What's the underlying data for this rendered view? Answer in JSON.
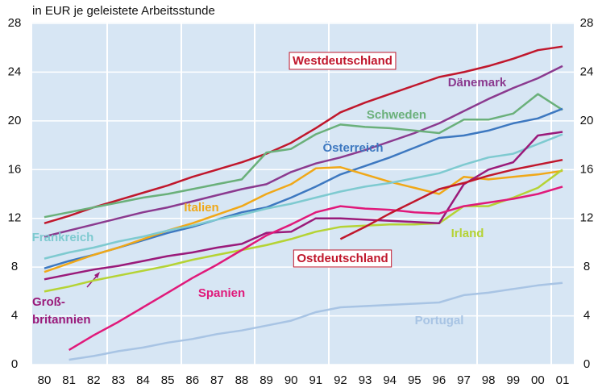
{
  "chart_data": {
    "type": "line",
    "subtitle": "in EUR je geleistete Arbeitsstunde",
    "categories": [
      "80",
      "81",
      "82",
      "83",
      "84",
      "85",
      "86",
      "87",
      "88",
      "89",
      "90",
      "91",
      "92",
      "93",
      "94",
      "95",
      "96",
      "97",
      "98",
      "99",
      "00",
      "01"
    ],
    "ylim": [
      0,
      28
    ],
    "yticks": [
      0,
      4,
      8,
      12,
      16,
      20,
      24,
      28
    ],
    "grid": true,
    "series": [
      {
        "name": "Westdeutschland",
        "color": "#c0172c",
        "boxed": true,
        "values": [
          11.6,
          12.2,
          12.9,
          13.5,
          14.1,
          14.7,
          15.4,
          16.0,
          16.6,
          17.3,
          18.2,
          19.4,
          20.7,
          21.5,
          22.2,
          22.9,
          23.6,
          24.0,
          24.5,
          25.1,
          25.8,
          26.1
        ]
      },
      {
        "name": "Dänemark",
        "color": "#8b3a8f",
        "values": [
          10.5,
          11.0,
          11.5,
          12.0,
          12.5,
          12.9,
          13.4,
          13.9,
          14.4,
          14.8,
          15.8,
          16.5,
          17.0,
          17.6,
          18.3,
          19.0,
          19.8,
          20.8,
          21.8,
          22.7,
          23.5,
          24.5
        ]
      },
      {
        "name": "Schweden",
        "color": "#6ab07a",
        "values": [
          12.1,
          12.5,
          12.9,
          13.3,
          13.7,
          14.0,
          14.4,
          14.8,
          15.2,
          17.4,
          17.7,
          18.9,
          19.7,
          19.5,
          19.4,
          19.2,
          19.0,
          20.1,
          20.1,
          20.6,
          22.2,
          20.9
        ]
      },
      {
        "name": "Österreich",
        "color": "#3d78c0",
        "values": [
          7.9,
          8.5,
          9.0,
          9.6,
          10.2,
          10.8,
          11.3,
          11.9,
          12.5,
          12.9,
          13.7,
          14.6,
          15.6,
          16.3,
          17.0,
          17.8,
          18.6,
          18.8,
          19.2,
          19.8,
          20.2,
          21.0
        ]
      },
      {
        "name": "Italien",
        "color": "#f0a818",
        "values": [
          7.6,
          8.3,
          9.0,
          9.6,
          10.3,
          11.0,
          11.6,
          12.3,
          13.0,
          14.0,
          14.8,
          16.1,
          16.2,
          15.6,
          15.0,
          14.5,
          14.0,
          15.4,
          15.2,
          15.4,
          15.6,
          15.9
        ]
      },
      {
        "name": "Frankreich",
        "color": "#7ecad0",
        "values": [
          8.7,
          9.2,
          9.6,
          10.1,
          10.5,
          11.0,
          11.4,
          11.9,
          12.3,
          12.8,
          13.2,
          13.7,
          14.2,
          14.6,
          14.9,
          15.3,
          15.7,
          16.4,
          17.0,
          17.3,
          18.1,
          18.9
        ]
      },
      {
        "name": "Irland",
        "color": "#b5d334",
        "values": [
          6.0,
          6.4,
          6.9,
          7.3,
          7.7,
          8.1,
          8.6,
          9.0,
          9.4,
          9.8,
          10.3,
          10.9,
          11.3,
          11.4,
          11.5,
          11.5,
          11.6,
          13.0,
          13.0,
          13.7,
          14.5,
          16.0
        ]
      },
      {
        "name": "Groß-britannien",
        "color": "#9a1a7a",
        "values": [
          7.0,
          7.4,
          7.8,
          8.1,
          8.5,
          8.9,
          9.2,
          9.6,
          9.9,
          10.8,
          10.9,
          12.0,
          12.0,
          11.9,
          11.8,
          11.7,
          11.6,
          14.8,
          16.0,
          16.6,
          18.8,
          19.1
        ]
      },
      {
        "name": "Spanien",
        "color": "#e0197a",
        "values": [
          null,
          1.2,
          2.4,
          3.5,
          4.7,
          5.9,
          7.1,
          8.2,
          9.4,
          10.6,
          11.5,
          12.5,
          13.0,
          12.8,
          12.7,
          12.5,
          12.4,
          13.0,
          13.3,
          13.6,
          14.0,
          14.6
        ]
      },
      {
        "name": "Ostdeutschland",
        "color": "#c0172c",
        "boxed": true,
        "values": [
          null,
          null,
          null,
          null,
          null,
          null,
          null,
          null,
          null,
          null,
          null,
          null,
          10.3,
          11.3,
          12.4,
          13.4,
          14.4,
          14.9,
          15.5,
          16.0,
          16.4,
          16.8
        ]
      },
      {
        "name": "Portugal",
        "color": "#a8c4e4",
        "values": [
          null,
          0.4,
          0.7,
          1.1,
          1.4,
          1.8,
          2.1,
          2.5,
          2.8,
          3.2,
          3.6,
          4.3,
          4.7,
          4.8,
          4.9,
          5.0,
          5.1,
          5.7,
          5.9,
          6.2,
          6.5,
          6.7
        ]
      }
    ]
  }
}
